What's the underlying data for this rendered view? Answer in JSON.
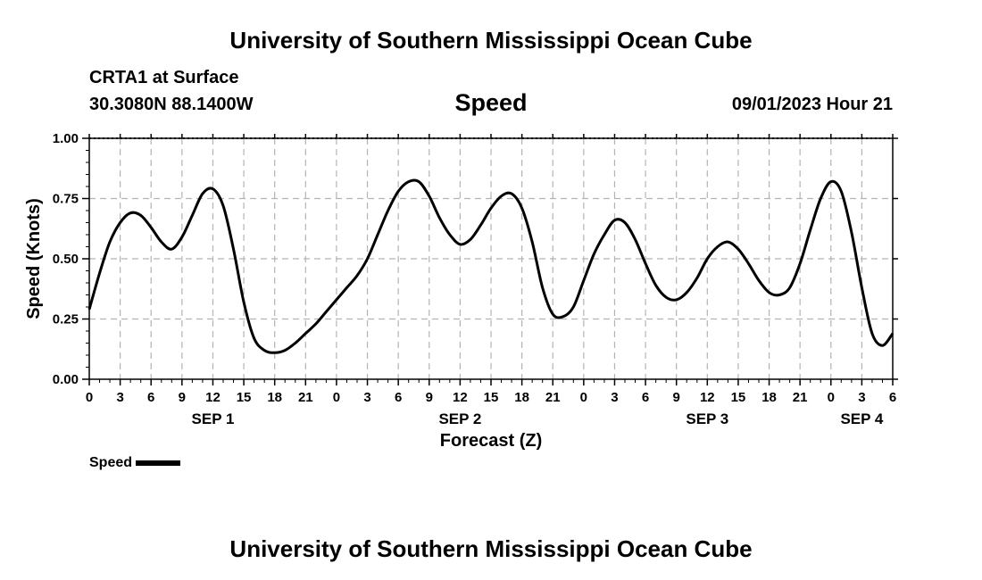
{
  "header": {
    "title": "University of Southern Mississippi Ocean Cube",
    "station": "CRTA1 at Surface",
    "coords": "30.3080N  88.1400W",
    "variable": "Speed",
    "datetime": "09/01/2023 Hour 21"
  },
  "footer": {
    "title": "University of Southern Mississippi Ocean Cube"
  },
  "legend": {
    "label": "Speed",
    "color": "#000000"
  },
  "chart_data": {
    "type": "line",
    "title": "Speed",
    "xlabel": "Forecast (Z)",
    "ylabel": "Speed (Knots)",
    "ylim": [
      0,
      1.0
    ],
    "yticks": [
      "0.00",
      "0.25",
      "0.50",
      "0.75",
      "1.00"
    ],
    "ytick_values": [
      0,
      0.25,
      0.5,
      0.75,
      1.0
    ],
    "xlim_hours": [
      0,
      78
    ],
    "xtick_labels": [
      "0",
      "3",
      "6",
      "9",
      "12",
      "15",
      "18",
      "21",
      "0",
      "3",
      "6",
      "9",
      "12",
      "15",
      "18",
      "21",
      "0",
      "3",
      "6",
      "9",
      "12",
      "15",
      "18",
      "21",
      "0",
      "3",
      "6"
    ],
    "day_labels": [
      {
        "text": "SEP 1",
        "hour": 12
      },
      {
        "text": "SEP 2",
        "hour": 36
      },
      {
        "text": "SEP 3",
        "hour": 60
      },
      {
        "text": "SEP 4",
        "hour": 75
      }
    ],
    "grid": true,
    "series": [
      {
        "name": "Speed",
        "x": [
          0,
          1,
          2,
          3,
          4,
          5,
          6,
          7,
          8,
          9,
          10,
          11,
          12,
          13,
          14,
          15,
          16,
          17,
          18,
          19,
          20,
          21,
          22,
          23,
          24,
          25,
          26,
          27,
          28,
          29,
          30,
          31,
          32,
          33,
          34,
          35,
          36,
          37,
          38,
          39,
          40,
          41,
          42,
          43,
          44,
          45,
          46,
          47,
          48,
          49,
          50,
          51,
          52,
          53,
          54,
          55,
          56,
          57,
          58,
          59,
          60,
          61,
          62,
          63,
          64,
          65,
          66,
          67,
          68,
          69,
          70,
          71,
          72,
          73,
          74,
          75,
          76,
          77,
          78
        ],
        "values": [
          0.29,
          0.44,
          0.57,
          0.65,
          0.69,
          0.68,
          0.63,
          0.57,
          0.54,
          0.59,
          0.68,
          0.77,
          0.79,
          0.72,
          0.54,
          0.32,
          0.17,
          0.12,
          0.11,
          0.12,
          0.15,
          0.19,
          0.23,
          0.28,
          0.33,
          0.38,
          0.43,
          0.5,
          0.6,
          0.7,
          0.78,
          0.82,
          0.82,
          0.76,
          0.67,
          0.6,
          0.56,
          0.58,
          0.64,
          0.71,
          0.76,
          0.77,
          0.71,
          0.57,
          0.38,
          0.27,
          0.26,
          0.3,
          0.41,
          0.52,
          0.6,
          0.66,
          0.65,
          0.58,
          0.48,
          0.39,
          0.34,
          0.33,
          0.36,
          0.42,
          0.5,
          0.55,
          0.57,
          0.54,
          0.48,
          0.41,
          0.36,
          0.35,
          0.38,
          0.48,
          0.62,
          0.75,
          0.82,
          0.78,
          0.61,
          0.38,
          0.19,
          0.14,
          0.19
        ]
      }
    ]
  }
}
